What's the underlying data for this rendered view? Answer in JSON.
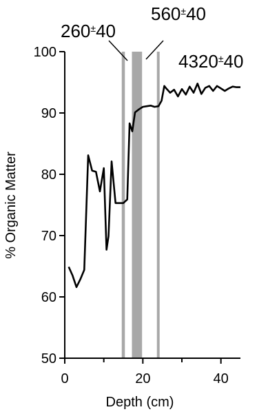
{
  "chart_data": {
    "type": "line",
    "title": "",
    "xlabel": "Depth (cm)",
    "ylabel": "% Organic Matter",
    "xlim": [
      0,
      45
    ],
    "ylim": [
      50,
      100
    ],
    "xticks": [
      0,
      20,
      40
    ],
    "yticks": [
      50,
      60,
      70,
      80,
      90,
      100
    ],
    "x_minor_ticks": [
      10,
      30
    ],
    "grid": false,
    "colors": {
      "line": "#000000",
      "bands": "#a8a8a8",
      "axis": "#000000"
    },
    "series": [
      {
        "x": [
          1,
          2,
          3,
          4,
          5,
          6,
          7,
          8,
          9,
          10,
          10.7,
          11.2,
          12,
          13,
          14,
          15,
          16,
          16.6,
          17.3,
          18,
          19,
          20,
          21,
          22,
          23,
          24,
          24.8,
          25.5,
          26,
          27,
          28,
          29,
          30,
          31,
          32,
          33,
          34,
          35,
          36,
          37,
          38,
          39,
          40,
          41,
          42,
          43,
          44,
          45
        ],
        "y": [
          64.9,
          63.5,
          61.6,
          62.9,
          64.4,
          83.1,
          80.6,
          80.4,
          77.2,
          81.0,
          67.7,
          69.9,
          82.1,
          75.3,
          75.3,
          75.3,
          75.9,
          88.3,
          87.0,
          90.1,
          90.6,
          91.0,
          91.1,
          91.2,
          91.0,
          91.1,
          92.0,
          94.4,
          94.0,
          93.3,
          93.8,
          92.7,
          93.9,
          93.0,
          94.3,
          93.3,
          94.8,
          93.1,
          94.1,
          94.4,
          93.6,
          94.4,
          94.0,
          93.6,
          94.0,
          94.3,
          94.2,
          94.2
        ]
      }
    ],
    "bands": [
      {
        "x0": 14.6,
        "x1": 15.4
      },
      {
        "x0": 17.2,
        "x1": 19.8
      },
      {
        "x0": 23.6,
        "x1": 24.3
      }
    ],
    "annotations": [
      {
        "value": "260",
        "pm": "±",
        "error": "40"
      },
      {
        "value": "560",
        "pm": "±",
        "error": "40"
      },
      {
        "value": "4320",
        "pm": "±",
        "error": "40"
      }
    ]
  }
}
